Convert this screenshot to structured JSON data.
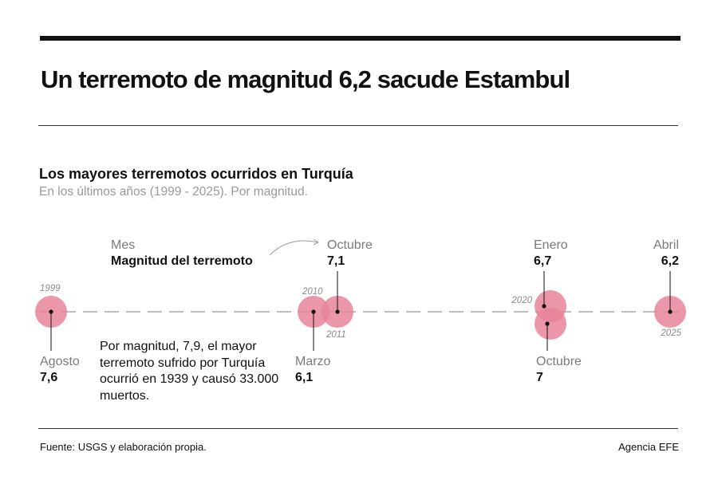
{
  "headline": "Un terremoto de magnitud 6,2 sacude Estambul",
  "subtitle": "Los mayores terremotos ocurridos en Turquía",
  "dek": "En los últimos años (1999 - 2025). Por magnitud.",
  "legend": {
    "month": "Mes",
    "magnitude": "Magnitud del terremoto"
  },
  "note": "Por magnitud, 7,9, el mayor terremoto sufrido por Turquía ocurrió en 1939 y causó 33.000 muertos.",
  "footer": {
    "source": "Fuente: USGS y elaboración propia.",
    "credit": "Agencia EFE"
  },
  "colors": {
    "bubble": "#e8849a",
    "axis": "#bdbdbd",
    "dot": "#111111",
    "year": "#8a8a8a",
    "month": "#7a7a7a"
  },
  "chart_data": {
    "type": "scatter",
    "x_range": [
      1999,
      2025
    ],
    "points": [
      {
        "year": "1999",
        "month": "Agosto",
        "magnitude": "7,6",
        "value": 7.6
      },
      {
        "year": "2010",
        "month": "Marzo",
        "magnitude": "6,1",
        "value": 6.1
      },
      {
        "year": "2011",
        "month": "Octubre",
        "magnitude": "7,1",
        "value": 7.1
      },
      {
        "year": "2020",
        "month": "Enero",
        "magnitude": "6,7",
        "value": 6.7
      },
      {
        "year": "2020",
        "month": "Octubre",
        "magnitude": "7",
        "value": 7.0
      },
      {
        "year": "2025",
        "month": "Abril",
        "magnitude": "6,2",
        "value": 6.2
      }
    ]
  }
}
